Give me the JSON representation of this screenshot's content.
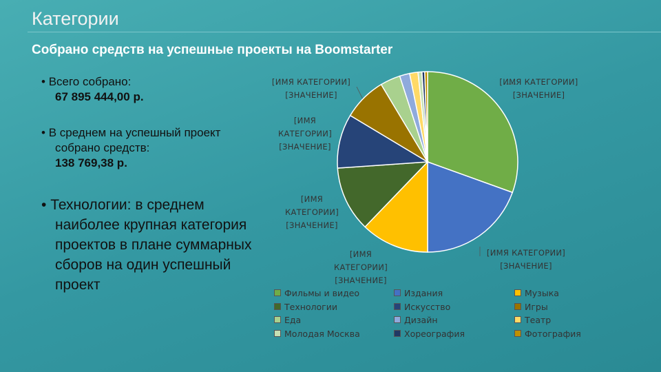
{
  "slide_title": "Категории",
  "subtitle": "Собрано средств на успешные проекты на Boomstarter",
  "bullets": [
    {
      "text": "Всего  собрано:",
      "bold": "67 895 444,00 р."
    },
    {
      "text": "В среднем на успешный проект собрано средств:",
      "bold": "138 769,38 р."
    },
    {
      "text": "Технологии: в среднем наиболее крупная категория проектов в плане суммарных сборов на один успешный проект"
    }
  ],
  "chart_data": {
    "type": "pie",
    "categories": [
      "Фильмы и видео",
      "Издания",
      "Музыка",
      "Технологии",
      "Искусство",
      "Игры",
      "Еда",
      "Дизайн",
      "Театр",
      "Молодая Москва",
      "Хореография",
      "Фотография"
    ],
    "values": [
      30.5,
      19.5,
      12.2,
      11.7,
      9.7,
      7.8,
      3.6,
      1.8,
      1.5,
      0.7,
      0.5,
      0.5
    ],
    "colors": [
      "#70ad47",
      "#4472c4",
      "#ffc000",
      "#43682b",
      "#264478",
      "#997300",
      "#a9d18e",
      "#8faadc",
      "#ffd966",
      "#c5e0b4",
      "#203864",
      "#bf9000"
    ],
    "callouts": [
      "[ИМЯ КАТЕГОРИИ] [ЗНАЧЕНИЕ]",
      "[ИМЯ КАТЕГОРИИ] [ЗНАЧЕНИЕ]",
      "[ИМЯ КАТЕГОРИИ] [ЗНАЧЕНИЕ]",
      "[ИМЯ КАТЕГОРИИ] [ЗНАЧЕНИЕ]",
      "[ИМЯ КАТЕГОРИИ] [ЗНАЧЕНИЕ]",
      "[ИМЯ КАТЕГОРИИ] [ЗНАЧЕНИЕ]"
    ]
  }
}
